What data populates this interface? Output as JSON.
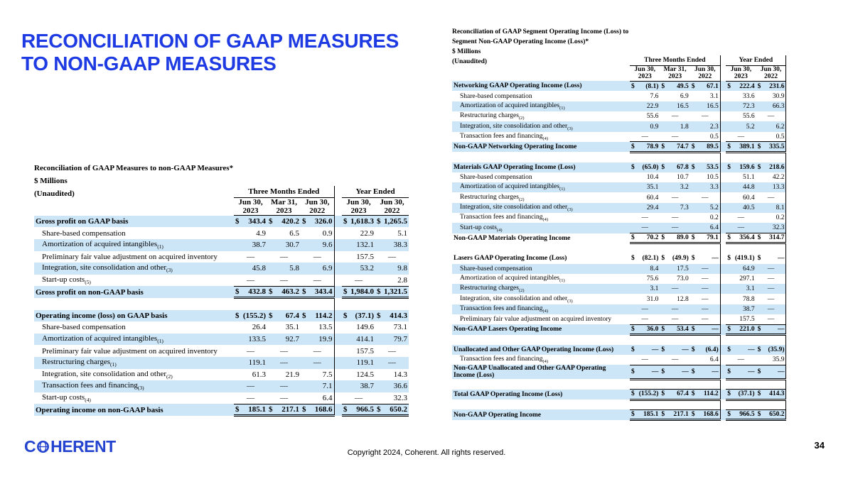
{
  "slide": {
    "title_lines": [
      "RECONCILIATION OF GAAP MEASURES",
      "TO NON-GAAP MEASURES"
    ],
    "logo": {
      "pre": "C",
      "post": "HERENT",
      "label": "COHERENT"
    },
    "footer": "Copyright 2024, Coherent. All rights reserved.",
    "page_number": "34"
  },
  "colors": {
    "accent_blue": "#1d3ae3",
    "logo_blue": "#2444cf",
    "row_shade": "#cde6f7"
  },
  "left_table": {
    "title_lines": [
      "Reconciliation of GAAP Measures to non-GAAP Measures*",
      "$ Millions",
      "(Unaudited)"
    ],
    "groups": [
      {
        "label": "Three Months Ended",
        "span": 3
      },
      {
        "label": "Year Ended",
        "span": 2
      }
    ],
    "columns": [
      {
        "line1": "Jun 30,",
        "line2": "2023"
      },
      {
        "line1": "Mar 31,",
        "line2": "2023"
      },
      {
        "line1": "Jun 30,",
        "line2": "2022"
      },
      {
        "line1": "Jun 30,",
        "line2": "2023"
      },
      {
        "line1": "Jun 30,",
        "line2": "2022"
      }
    ],
    "rows": [
      {
        "label": "Gross profit on GAAP basis",
        "bold": true,
        "values": [
          "$ 343.4",
          "$ 420.2",
          "$ 326.0",
          "$1,618.3",
          "$1,265.5"
        ]
      },
      {
        "label": "Share-based compensation",
        "indent": true,
        "values": [
          "4.9",
          "6.5",
          "0.9",
          "22.9",
          "5.1"
        ]
      },
      {
        "label": "Amortization of acquired intangibles",
        "note": "(1)",
        "indent": true,
        "values": [
          "38.7",
          "30.7",
          "9.6",
          "132.1",
          "38.3"
        ]
      },
      {
        "label": "Preliminary fair value adjustment on acquired inventory",
        "indent": true,
        "values": [
          "—",
          "—",
          "—",
          "157.5",
          "—"
        ]
      },
      {
        "label": "Integration, site consolidation and other",
        "note": "(3)",
        "indent": true,
        "values": [
          "45.8",
          "5.8",
          "6.9",
          "53.2",
          "9.8"
        ]
      },
      {
        "label": "Start-up costs",
        "note": "(5)",
        "indent": true,
        "values": [
          "—",
          "—",
          "—",
          "—",
          "2.8"
        ],
        "line": "single"
      },
      {
        "label": "Gross profit on non-GAAP basis",
        "bold": true,
        "values": [
          "$ 432.8",
          "$ 463.2",
          "$ 343.4",
          "$1,984.0",
          "$1,321.5"
        ],
        "line": "double"
      },
      {
        "blank": true
      },
      {
        "label": "Operating income (loss) on GAAP basis",
        "bold": true,
        "values": [
          "$ (155.2)",
          "$ 67.4",
          "$ 114.2",
          "$ (37.1)",
          "$ 414.3"
        ]
      },
      {
        "label": "Share-based compensation",
        "indent": true,
        "values": [
          "26.4",
          "35.1",
          "13.5",
          "149.6",
          "73.1"
        ]
      },
      {
        "label": "Amortization of acquired intangibles",
        "note": "(1)",
        "indent": true,
        "values": [
          "133.5",
          "92.7",
          "19.9",
          "414.1",
          "79.7"
        ]
      },
      {
        "label": "Preliminary fair value adjustment on acquired inventory",
        "indent": true,
        "values": [
          "—",
          "—",
          "—",
          "157.5",
          "—"
        ]
      },
      {
        "label": "Restructuring charges",
        "note": "(1)",
        "indent": true,
        "values": [
          "119.1",
          "—",
          "—",
          "119.1",
          "—"
        ]
      },
      {
        "label": "Integration, site consolidation and other",
        "note": "(2)",
        "indent": true,
        "values": [
          "61.3",
          "21.9",
          "7.5",
          "124.5",
          "14.3"
        ]
      },
      {
        "label": "Transaction fees and financing",
        "note": "(3)",
        "indent": true,
        "values": [
          "—",
          "—",
          "7.1",
          "38.7",
          "36.6"
        ]
      },
      {
        "label": "Start-up costs",
        "note": "(4)",
        "indent": true,
        "values": [
          "—",
          "—",
          "6.4",
          "—",
          "32.3"
        ],
        "line": "single"
      },
      {
        "label": "Operating income on non-GAAP basis",
        "bold": true,
        "values": [
          "$ 185.1",
          "$ 217.1",
          "$ 168.6",
          "$ 966.5",
          "$ 650.2"
        ],
        "line": "double"
      }
    ]
  },
  "right_table": {
    "title_lines": [
      "Reconciliation of GAAP Segment Operating Income (Loss) to",
      "Segment Non-GAAP Operating Income (Loss)*",
      "$ Millions",
      "(Unaudited)"
    ],
    "groups": [
      {
        "label": "Three Months Ended",
        "span": 3
      },
      {
        "label": "Year Ended",
        "span": 2
      }
    ],
    "columns": [
      {
        "line1": "Jun 30,",
        "line2": "2023"
      },
      {
        "line1": "Mar 31,",
        "line2": "2023"
      },
      {
        "line1": "Jun 30,",
        "line2": "2022"
      },
      {
        "line1": "Jun 30,",
        "line2": "2023"
      },
      {
        "line1": "Jun 30,",
        "line2": "2022"
      }
    ],
    "rows": [
      {
        "label": "Networking GAAP Operating Income (Loss)",
        "bold": true,
        "values": [
          "$ (8.1)",
          "$ 49.5",
          "$ 67.1",
          "$ 222.4",
          "$ 231.6"
        ]
      },
      {
        "label": "Share-based compensation",
        "indent": true,
        "values": [
          "7.6",
          "6.9",
          "3.1",
          "33.6",
          "30.9"
        ]
      },
      {
        "label": "Amortization of acquired intangibles",
        "note": "(1)",
        "indent": true,
        "values": [
          "22.9",
          "16.5",
          "16.5",
          "72.3",
          "66.3"
        ]
      },
      {
        "label": "Restructuring charges",
        "note": "(2)",
        "indent": true,
        "values": [
          "55.6",
          "—",
          "—",
          "55.6",
          "—"
        ]
      },
      {
        "label": "Integration, site consolidation and other",
        "note": "(3)",
        "indent": true,
        "values": [
          "0.9",
          "1.8",
          "2.3",
          "5.2",
          "6.2"
        ]
      },
      {
        "label": "Transaction fees and financing",
        "note": "(4)",
        "indent": true,
        "values": [
          "—",
          "—",
          "0.5",
          "—",
          "0.5"
        ],
        "line": "single"
      },
      {
        "label": "Non-GAAP Networking Operating Income",
        "bold": true,
        "values": [
          "$ 78.9",
          "$ 74.7",
          "$ 89.5",
          "$ 389.1",
          "$ 335.5"
        ],
        "line": "double"
      },
      {
        "blank": true
      },
      {
        "label": "Materials GAAP Operating Income (Loss)",
        "bold": true,
        "values": [
          "$ (65.0)",
          "$ 67.8",
          "$ 53.5",
          "$ 159.6",
          "$ 218.6"
        ]
      },
      {
        "label": "Share-based compensation",
        "indent": true,
        "values": [
          "10.4",
          "10.7",
          "10.5",
          "51.1",
          "42.2"
        ]
      },
      {
        "label": "Amortization of acquired intangibles",
        "note": "(1)",
        "indent": true,
        "values": [
          "35.1",
          "3.2",
          "3.3",
          "44.8",
          "13.3"
        ]
      },
      {
        "label": "Restructuring charges",
        "note": "(2)",
        "indent": true,
        "values": [
          "60.4",
          "—",
          "—",
          "60.4",
          "—"
        ]
      },
      {
        "label": "Integration, site consolidation and other",
        "note": "(3)",
        "indent": true,
        "values": [
          "29.4",
          "7.3",
          "5.2",
          "40.5",
          "8.1"
        ]
      },
      {
        "label": "Transaction fees and financing",
        "note": "(4)",
        "indent": true,
        "values": [
          "—",
          "—",
          "0.2",
          "—",
          "0.2"
        ]
      },
      {
        "label": "Start-up costs",
        "note": "(4)",
        "indent": true,
        "values": [
          "—",
          "—",
          "6.4",
          "—",
          "32.3"
        ],
        "line": "single"
      },
      {
        "label": "Non-GAAP Materials Operating Income",
        "bold": true,
        "values": [
          "$ 70.2",
          "$ 89.0",
          "$ 79.1",
          "$ 356.4",
          "$ 314.7"
        ],
        "line": "double"
      },
      {
        "blank": true
      },
      {
        "label": "Lasers GAAP Operating Income (Loss)",
        "bold": true,
        "values": [
          "$ (82.1)",
          "$ (49.9)",
          "$ —",
          "$ (419.1)",
          "$ —"
        ]
      },
      {
        "label": "Share-based compensation",
        "indent": true,
        "values": [
          "8.4",
          "17.5",
          "—",
          "64.9",
          "—"
        ]
      },
      {
        "label": "Amortization of acquired intangibles",
        "note": "(1)",
        "indent": true,
        "values": [
          "75.6",
          "73.0",
          "—",
          "297.1",
          "—"
        ]
      },
      {
        "label": "Restructuring charges",
        "note": "(2)",
        "indent": true,
        "values": [
          "3.1",
          "—",
          "—",
          "3.1",
          "—"
        ]
      },
      {
        "label": "Integration, site consolidation and other",
        "note": "(3)",
        "indent": true,
        "values": [
          "31.0",
          "12.8",
          "—",
          "78.8",
          "—"
        ]
      },
      {
        "label": "Transaction fees and financing",
        "note": "(4)",
        "indent": true,
        "values": [
          "—",
          "—",
          "—",
          "38.7",
          "—"
        ]
      },
      {
        "label": "Preliminary fair value adjustment on acquired inventory",
        "indent": true,
        "values": [
          "—",
          "—",
          "—",
          "157.5",
          "—"
        ],
        "line": "single"
      },
      {
        "label": "Non-GAAP Lasers Operating Income",
        "bold": true,
        "values": [
          "$ 36.0",
          "$ 53.4",
          "$ —",
          "$ 221.0",
          "$ —"
        ],
        "line": "double"
      },
      {
        "blank": true
      },
      {
        "label": "Unallocated and Other GAAP Operating Income (Loss)",
        "bold": true,
        "values": [
          "$ —",
          "$ —",
          "$ (6.4)",
          "$ —",
          "$ (35.9)"
        ]
      },
      {
        "label": "Transaction fees and financing",
        "note": "(4)",
        "indent": true,
        "values": [
          "—",
          "—",
          "6.4",
          "—",
          "35.9"
        ],
        "line": "single"
      },
      {
        "label": "Non-GAAP Unallocated and Other GAAP Operating Income (Loss)",
        "bold": true,
        "values": [
          "$ —",
          "$ —",
          "$ —",
          "$ —",
          "$ —"
        ],
        "line": "double"
      },
      {
        "blank": true
      },
      {
        "label": "Total GAAP Operating Income (Loss)",
        "bold": true,
        "values": [
          "$ (155.2)",
          "$ 67.4",
          "$ 114.2",
          "$ (37.1)",
          "$ 414.3"
        ],
        "line": "double",
        "top": true
      },
      {
        "blank": true
      },
      {
        "label": "Non-GAAP Operating Income",
        "bold": true,
        "values": [
          "$ 185.1",
          "$ 217.1",
          "$ 168.6",
          "$ 966.5",
          "$ 650.2"
        ],
        "line": "double",
        "top": true
      }
    ]
  }
}
